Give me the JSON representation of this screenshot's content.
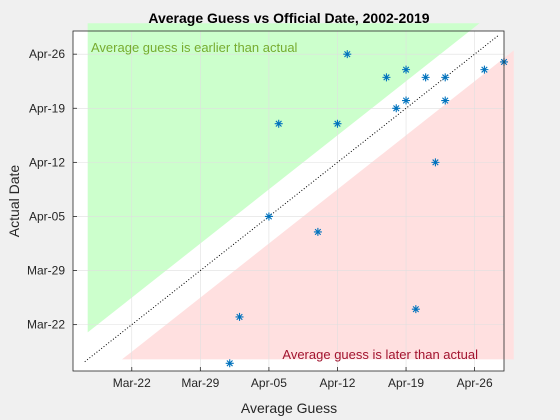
{
  "chart_data": {
    "type": "scatter",
    "title": "Average Guess vs Official Date, 2002-2019",
    "xlabel": "Average Guess",
    "ylabel": "Actual Date",
    "xlim": [
      "2019-03-16",
      "2019-04-29"
    ],
    "ylim": [
      "2019-03-16",
      "2019-04-29"
    ],
    "x_ticks": [
      {
        "date": "2019-03-22",
        "label": "Mar-22"
      },
      {
        "date": "2019-03-29",
        "label": "Mar-29"
      },
      {
        "date": "2019-04-05",
        "label": "Apr-05"
      },
      {
        "date": "2019-04-12",
        "label": "Apr-12"
      },
      {
        "date": "2019-04-19",
        "label": "Apr-19"
      },
      {
        "date": "2019-04-26",
        "label": "Apr-26"
      }
    ],
    "y_ticks": [
      {
        "date": "2019-03-22",
        "label": "Mar-22"
      },
      {
        "date": "2019-03-29",
        "label": "Mar-29"
      },
      {
        "date": "2019-04-05",
        "label": "Apr-05"
      },
      {
        "date": "2019-04-12",
        "label": "Apr-12"
      },
      {
        "date": "2019-04-19",
        "label": "Apr-19"
      },
      {
        "date": "2019-04-26",
        "label": "Apr-26"
      }
    ],
    "grid": true,
    "marker": "asterisk",
    "points": [
      {
        "x": "2019-04-01",
        "y": "2019-03-17"
      },
      {
        "x": "2019-04-02",
        "y": "2019-03-23"
      },
      {
        "x": "2019-04-05",
        "y": "2019-04-05"
      },
      {
        "x": "2019-04-06",
        "y": "2019-04-17"
      },
      {
        "x": "2019-04-10",
        "y": "2019-04-03"
      },
      {
        "x": "2019-04-12",
        "y": "2019-04-17"
      },
      {
        "x": "2019-04-13",
        "y": "2019-04-26"
      },
      {
        "x": "2019-04-17",
        "y": "2019-04-23"
      },
      {
        "x": "2019-04-19",
        "y": "2019-04-24"
      },
      {
        "x": "2019-04-18",
        "y": "2019-04-19"
      },
      {
        "x": "2019-04-19",
        "y": "2019-04-20"
      },
      {
        "x": "2019-04-20",
        "y": "2019-03-24"
      },
      {
        "x": "2019-04-21",
        "y": "2019-04-23"
      },
      {
        "x": "2019-04-22",
        "y": "2019-04-12"
      },
      {
        "x": "2019-04-23",
        "y": "2019-04-23"
      },
      {
        "x": "2019-04-23",
        "y": "2019-04-20"
      },
      {
        "x": "2019-04-27",
        "y": "2019-04-24"
      },
      {
        "x": "2019-04-29",
        "y": "2019-04-25"
      }
    ],
    "reference_line": {
      "style": "dotted",
      "color": "#000000",
      "relation": "y = x"
    },
    "regions": [
      {
        "name": "earlier",
        "label": "Average guess is earlier than actual",
        "fill": "#ccffcc",
        "label_color": "#77ac30"
      },
      {
        "name": "later",
        "label": "Average guess is later than actual",
        "fill": "#ffe0e0",
        "label_color": "#a2142f"
      }
    ],
    "colors": {
      "marker": "#0072bd",
      "axes_bg": "#ffffff",
      "figure_bg": "#f0f0f0",
      "grid": "#dfdfdf",
      "axis": "#262626"
    }
  }
}
